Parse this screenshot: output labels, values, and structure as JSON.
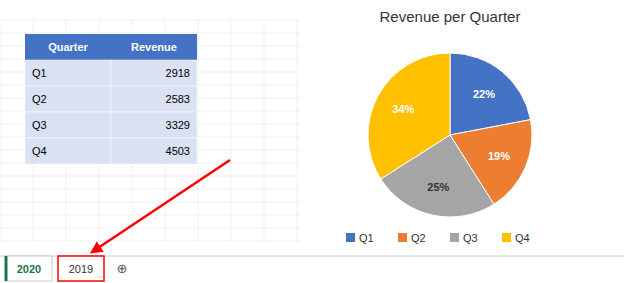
{
  "chart_data": [
    {
      "type": "pie",
      "title": "Revenue per Quarter",
      "categories": [
        "Q1",
        "Q2",
        "Q3",
        "Q4"
      ],
      "values": [
        22,
        19,
        25,
        34
      ],
      "value_labels": [
        "22%",
        "19%",
        "25%",
        "34%"
      ],
      "colors": [
        "#4472C4",
        "#ED7D31",
        "#A5A5A5",
        "#FFC000"
      ],
      "data_labels": true,
      "legend": "bottom",
      "annotations": [
        "2020",
        "2019",
        "⊕"
      ]
    },
    {
      "type": "table",
      "columns": [
        "Quarter",
        "Revenue"
      ],
      "categories": [
        "Q1",
        "Q2",
        "Q3",
        "Q4"
      ],
      "values": [
        2918,
        2583,
        3329,
        4503
      ]
    }
  ]
}
